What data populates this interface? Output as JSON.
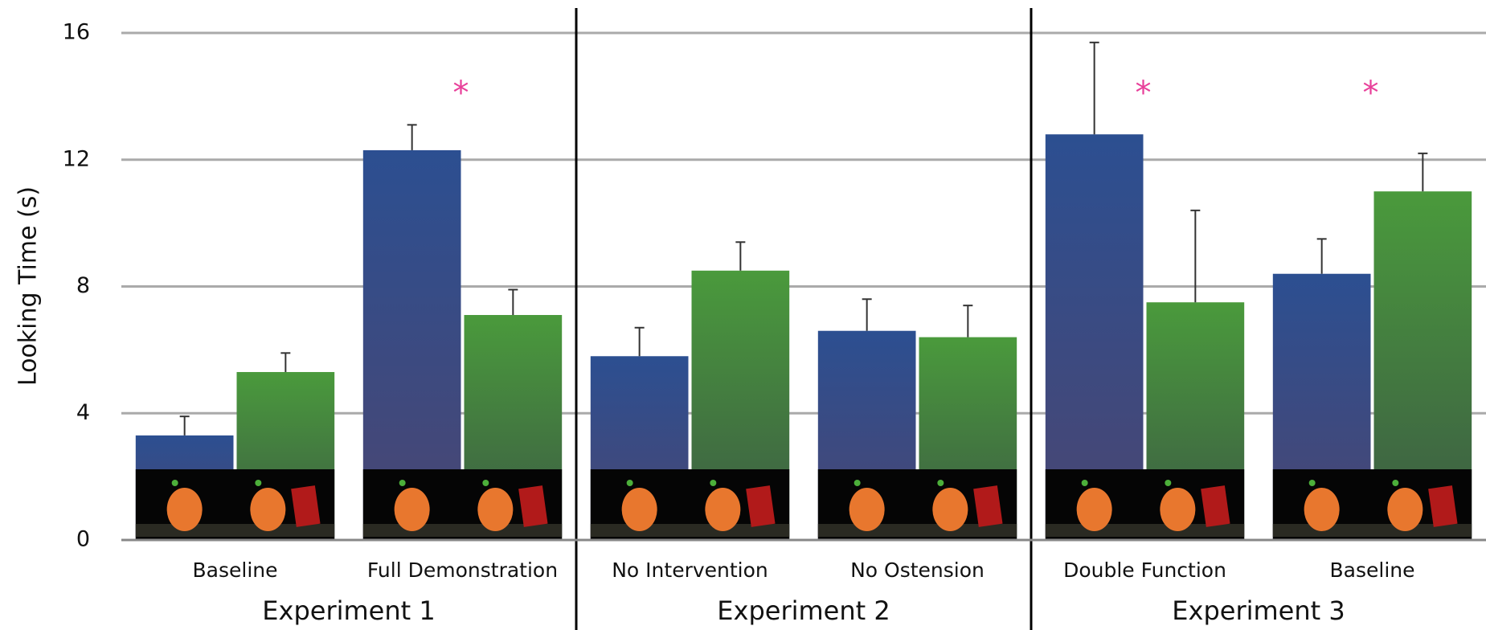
{
  "chart_data": {
    "type": "bar",
    "y_label": "Looking Time (s)",
    "categories": [
      "Baseline",
      "Full Demonstration",
      "No Intervention",
      "No Ostension",
      "Double Function",
      "Baseline"
    ],
    "category_groups": [
      "Experiment 1",
      "Experiment 2",
      "Experiment 3"
    ],
    "series": [
      {
        "color": "#2c4f91",
        "values": [
          3.3,
          12.3,
          5.8,
          6.6,
          12.8,
          8.4
        ],
        "errors": [
          0.6,
          0.8,
          0.9,
          1.0,
          2.9,
          1.1
        ]
      },
      {
        "color": "#4a9a3c",
        "values": [
          5.3,
          7.1,
          8.5,
          6.4,
          7.5,
          11.0
        ],
        "errors": [
          0.6,
          0.8,
          0.9,
          1.0,
          2.9,
          1.2
        ]
      }
    ],
    "significance_marker": "*",
    "significant": [
      false,
      true,
      false,
      false,
      true,
      true
    ],
    "ylim": [
      0,
      16
    ],
    "yticks": [
      0,
      4,
      8,
      12,
      16
    ],
    "grid": true
  }
}
